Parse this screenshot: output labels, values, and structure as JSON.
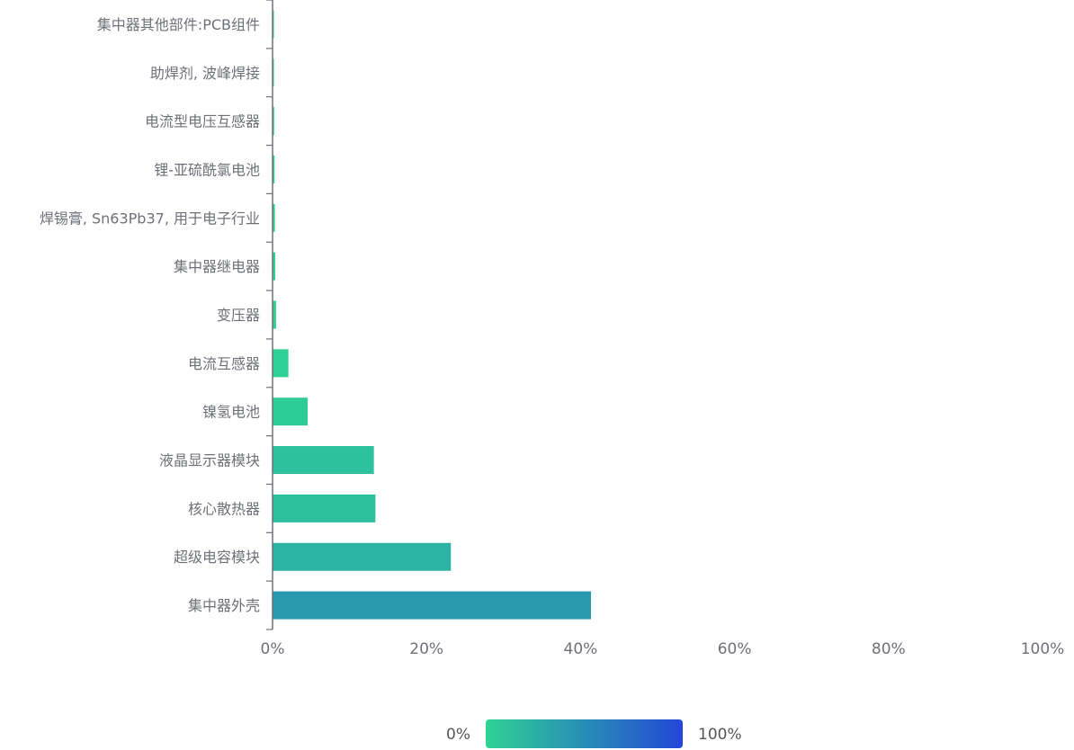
{
  "chart_data": {
    "type": "bar",
    "orientation": "horizontal",
    "categories": [
      "集中器外壳",
      "超级电容模块",
      "核心散热器",
      "液晶显示器模块",
      "镍氢电池",
      "电流互感器",
      "变压器",
      "集中器继电器",
      "焊锡膏, Sn63Pb37, 用于电子行业",
      "锂-亚硫酰氯电池",
      "电流型电压互感器",
      "助焊剂, 波峰焊接",
      "集中器其他部件:PCB组件"
    ],
    "values": [
      41.3,
      23.1,
      13.3,
      13.1,
      4.5,
      2.0,
      0.4,
      0.3,
      0.25,
      0.2,
      0.15,
      0.1,
      0.05
    ],
    "value_unit": "%",
    "xlim": [
      0,
      100
    ],
    "x_ticks": [
      "0%",
      "20%",
      "40%",
      "60%",
      "80%",
      "100%"
    ],
    "grid": false,
    "colors": {
      "low": "#2ed394",
      "high": "#2347d8"
    },
    "visual_map": {
      "min_label": "0%",
      "max_label": "100%",
      "placement": "bottom-center"
    }
  }
}
